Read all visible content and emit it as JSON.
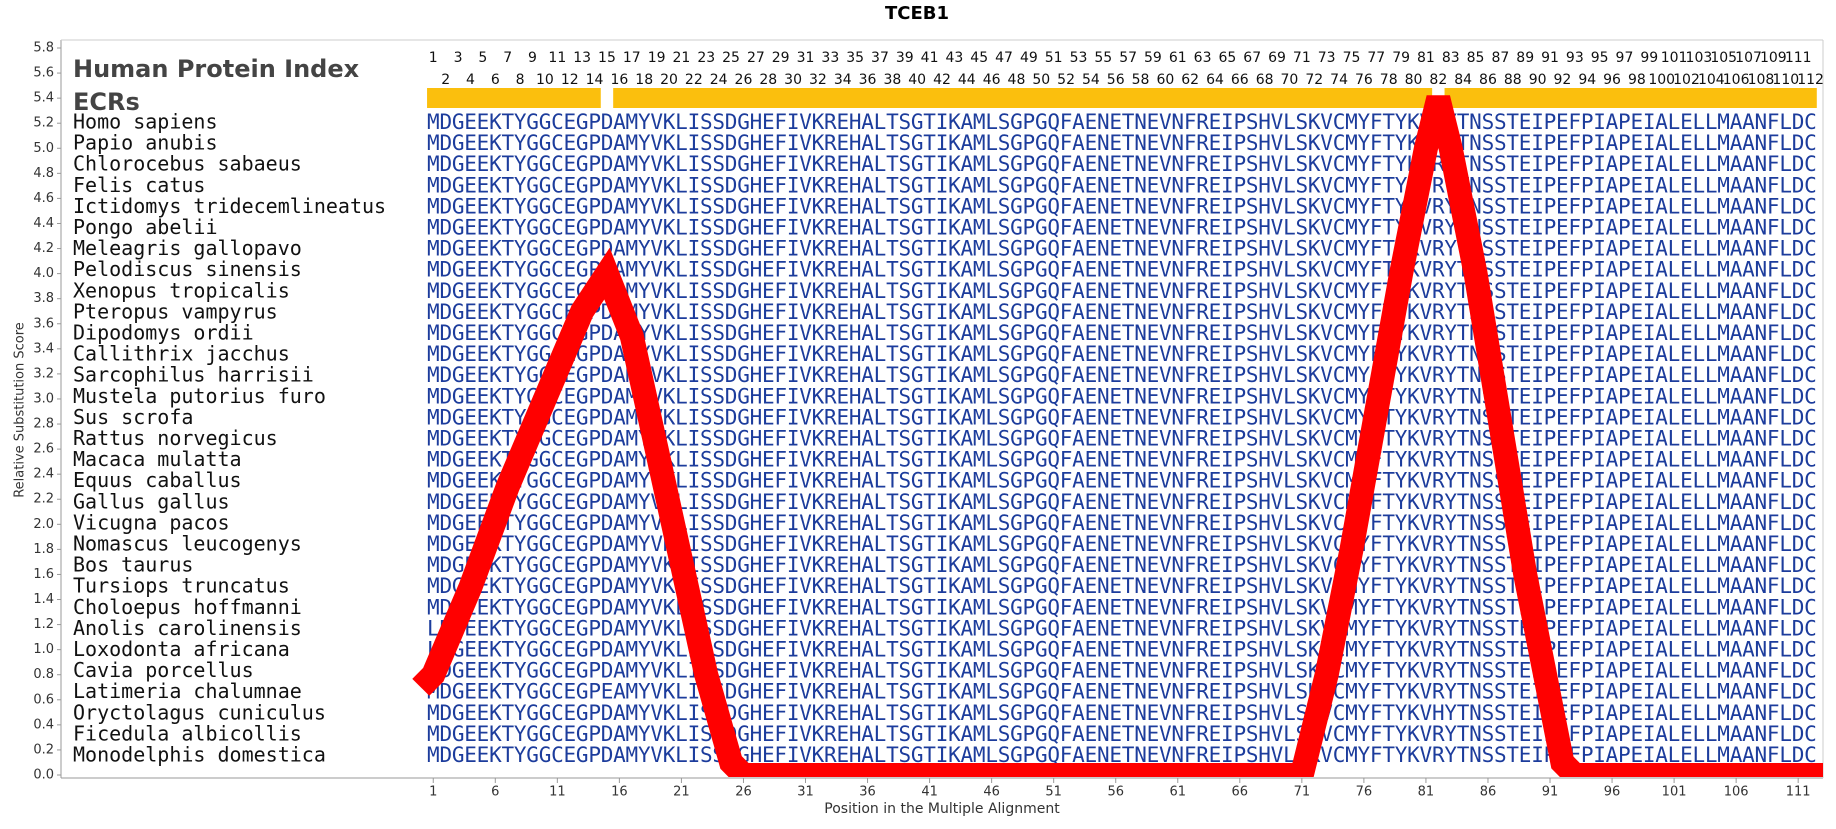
{
  "chart_data": {
    "type": "line",
    "title": "TCEB1",
    "xlabel": "Position in the Multiple Alignment",
    "ylabel": "Relative Substitution Score",
    "xlim": [
      -29,
      113
    ],
    "ylim": [
      0,
      5.8
    ],
    "xticks": [
      1,
      6,
      11,
      16,
      21,
      26,
      31,
      36,
      41,
      46,
      51,
      56,
      61,
      66,
      71,
      76,
      81,
      86,
      91,
      96,
      101,
      106,
      111
    ],
    "yticks": [
      {
        "value": 0,
        "label": "0.0"
      },
      0.2,
      0.4,
      0.6,
      0.8,
      {
        "value": 1,
        "label": "1.0"
      },
      1.2,
      1.4,
      1.6,
      1.8,
      {
        "value": 2,
        "label": "2.0"
      },
      2.2,
      2.4,
      2.6,
      2.8,
      {
        "value": 3,
        "label": "3.0"
      },
      3.2,
      3.4,
      3.6,
      3.8,
      {
        "value": 4,
        "label": "4.0"
      },
      4.2,
      4.4,
      4.6,
      4.8,
      {
        "value": 5,
        "label": "5.0"
      },
      5.2,
      5.4,
      5.6,
      5.8
    ],
    "color": "#ff0000",
    "x": [
      0,
      1,
      4,
      7,
      10,
      13,
      15,
      17,
      19,
      21,
      23,
      25,
      26,
      71,
      73,
      75,
      77,
      79,
      81,
      82,
      83,
      85,
      87,
      89,
      91,
      92,
      93,
      113
    ],
    "values": [
      0.7,
      0.8,
      1.5,
      2.3,
      3.0,
      3.7,
      4.0,
      3.5,
      2.6,
      1.7,
      0.8,
      0.1,
      0,
      0,
      0.8,
      1.8,
      2.9,
      4.0,
      5.0,
      5.4,
      5.0,
      4.0,
      2.8,
      1.6,
      0.6,
      0.1,
      0,
      0
    ],
    "protein_index_label": "Human Protein Index",
    "protein_index": [
      1,
      2,
      3,
      4,
      5,
      6,
      7,
      8,
      9,
      10,
      11,
      12,
      13,
      14,
      15,
      16,
      17,
      18,
      19,
      20,
      21,
      22,
      23,
      24,
      25,
      26,
      27,
      28,
      29,
      30,
      31,
      32,
      33,
      34,
      35,
      36,
      37,
      38,
      39,
      40,
      41,
      42,
      43,
      44,
      45,
      46,
      47,
      48,
      49,
      50,
      51,
      52,
      53,
      54,
      55,
      56,
      57,
      58,
      59,
      60,
      61,
      62,
      63,
      64,
      65,
      66,
      67,
      68,
      69,
      70,
      71,
      72,
      73,
      74,
      75,
      76,
      77,
      78,
      79,
      80,
      81,
      82,
      83,
      84,
      85,
      86,
      87,
      88,
      89,
      90,
      91,
      92,
      93,
      94,
      95,
      96,
      97,
      98,
      99,
      100,
      101,
      102,
      103,
      104,
      105,
      106,
      107,
      108,
      109,
      110,
      111,
      112
    ],
    "ecr_label": "ECRs",
    "ecr_color": "#fbbf0d",
    "ecrs": [
      [
        1,
        14
      ],
      [
        16,
        81
      ],
      [
        83,
        112
      ]
    ],
    "alignment": [
      {
        "species": "Homo sapiens",
        "sequence": "MDGEEKTYGGCEGPDAMYVKLISSDGHEFIVKREHALTSGTIKAMLSGPGQFAENETNEVNFREIPSHVLSKVCMYFTYKVRYTNSSTEIPEFPIAPEIALELLMAANFLDC"
      },
      {
        "species": "Papio anubis",
        "sequence": "MDGEEKTYGGCEGPDAMYVKLISSDGHEFIVKREHALTSGTIKAMLSGPGQFAENETNEVNFREIPSHVLSKVCMYFTYKVRYTNSSTEIPEFPIAPEIALELLMAANFLDC"
      },
      {
        "species": "Chlorocebus sabaeus",
        "sequence": "MDGEEKTYGGCEGPDAMYVKLISSDGHEFIVKREHALTSGTIKAMLSGPGQFAENETNEVNFREIPSHVLSKVCMYFTYKVRYTNSSTEIPEFPIAPEIALELLMAANFLDC"
      },
      {
        "species": "Felis catus",
        "sequence": "MDGEEKTYGGCEGPDAMYVKLISSDGHEFIVKREHALTSGTIKAMLSGPGQFAENETNEVNFREIPSHVLSKVCMYFTYKVRYTNSSTEIPEFPIAPEIALELLMAANFLDC"
      },
      {
        "species": "Ictidomys tridecemlineatus",
        "sequence": "MDGEEKTYGGCEGPDAMYVKLISSDGHEFIVKREHALTSGTIKAMLSGPGQFAENETNEVNFREIPSHVLSKVCMYFTYKVRYTNSSTEIPEFPIAPEIALELLMAANFLDC"
      },
      {
        "species": "Pongo abelii",
        "sequence": "MDGEEKTYGGCEGPDAMYVKLISSDGHEFIVKREHALTSGTIKAMLSGPGQFAENETNEVNFREIPSHVLSKVCMYFTYKVRYTNSSTEIPEFPIAPEIALELLMAANFLDC"
      },
      {
        "species": "Meleagris gallopavo",
        "sequence": "MDGEEKTYGGCEGPDAMYVKLISSDGHEFIVKREHALTSGTIKAMLSGPGQFAENETNEVNFREIPSHVLSKVCMYFTYKVRYTNSSTEIPEFPIAPEIALELLMAANFLDC"
      },
      {
        "species": "Pelodiscus sinensis",
        "sequence": "MDGEEKTYGGCEGPDAMYVKLISSDGHEFIVKREHALTSGTIKAMLSGPGQFAENETNEVNFREIPSHVLSKVCMYFTYKVRYTNSSTEIPEFPIAPEIALELLMAANFLDC"
      },
      {
        "species": "Xenopus tropicalis",
        "sequence": "MDGEEKTYGGCEGPDAMYVKLISSDGHEFIVKREHALTSGTIKAMLSGPGQFAENETNEVNFREIPSHVLSKVCMYFTYKVRYTNSSTEIPEFPIAPEIALELLMAANFLDC"
      },
      {
        "species": "Pteropus vampyrus",
        "sequence": "MDGEEKTYGGCEGPDAMYVKLISSDGHEFIVKREHALTSGTIKAMLSGPGQFAENETNEVNFREIPSHVLSKVCMYFTYKVRYTNSSTEIPEFPIAPEIALELLMAANFLDC"
      },
      {
        "species": "Dipodomys ordii",
        "sequence": "MDGEEKTYGGCEGPDAMYVKLISSDGHEFIVKREHALTSGTIKAMLSGPGQFAENETNEVNFREIPSHVLSKVCMYFTYKVRYTNSSTEIPEFPIAPEIALELLMAANFLDC"
      },
      {
        "species": "Callithrix jacchus",
        "sequence": "MDGEEKTYGGCEGPDAMYVKLISSDGHEFIVKREHALTSGTIKAMLSGPGQFAENETNEVNFREIPSHVLSKVCMYFTYKVRYTNSSTEIPEFPIAPEIALELLMAANFLDC"
      },
      {
        "species": "Sarcophilus harrisii",
        "sequence": "MDGEEKTYGGCEGPDAMYVKLISSDGHEFIVKREHALTSGTIKAMLSGPGQFAENETNEVNFREIPSHVLSKVCMYFTYKVRYTNSSTEIPEFPIAPEIALELLMAANFLDC"
      },
      {
        "species": "Mustela putorius furo",
        "sequence": "MDGEEKTYGGCEGPDAMYVKLISSDGHEFIVKREHALTSGTIKAMLSGPGQFAENETNEVNFREIPSHVLSKVCMYFTYKVRYTNSSTEIPEFPIAPEIALELLMAANFLDC"
      },
      {
        "species": "Sus scrofa",
        "sequence": "MDGEEKTYGGCEGPDAMYVKLISSDGHEFIVKREHALTSGTIKAMLSGPGQFAENETNEVNFREIPSHVLSKVCMYFTYKVRYTNSSTEIPEFPIAPEIALELLMAANFLDC"
      },
      {
        "species": "Rattus norvegicus",
        "sequence": "MDGEEKTYGGCEGPDAMYVKLISSDGHEFIVKREHALTSGTIKAMLSGPGQFAENETNEVNFREIPSHVLSKVCMYFTYKVRYTNSSTEIPEFPIAPEIALELLMAANFLDC"
      },
      {
        "species": "Macaca mulatta",
        "sequence": "MDGEEKTYGGCEGPDAMYVKLISSDGHEFIVKREHALTSGTIKAMLSGPGQFAENETNEVNFREIPSHVLSKVCMYFTYKVRYTNSSTEIPEFPIAPEIALELLMAANFLDC"
      },
      {
        "species": "Equus caballus",
        "sequence": "MDGEEKTYGGCEGPDAMYVKLISSDGHEFIVKREHALTSGTIKAMLSGPGQFAENETNEVNFREIPSHVLSKVCMYFTYKVRYTNSSTEIPEFPIAPEIALELLMAANFLDC"
      },
      {
        "species": "Gallus gallus",
        "sequence": "MDGEEKTYGGCEGPDAMYVKLISSDGHEFIVKREHALTSGTIKAMLSGPGQFAENETNEVNFREIPSHVLSKVCMYFTYKVRYTNSSTEIPEFPIAPEIALELLMAANFLDC"
      },
      {
        "species": "Vicugna pacos",
        "sequence": "MDGEEKTYGGCEGPDAMYVKLISSDGHEFIVKREHALTSGTIKAMLSGPGQFAENETNEVNFREIPSHVLSKVCMYFTYKVRYTNSSTEIPEFPIAPEIALELLMAANFLDC"
      },
      {
        "species": "Nomascus leucogenys",
        "sequence": "MDGEEKTYGGCEGPDAMYVKLISSDGHEFIVKREHALTSGTIKAMLSGPGQFAENETNEVNFREIPSHVLSKVCMYFTYKVRYTNSSTEIPEFPIAPEIALELLMAANFLDC"
      },
      {
        "species": "Bos taurus",
        "sequence": "MDGEEKTYGGCEGPDAMYVKLISSDGHEFIVKREHALTSGTIKAMLSGPGQFAENETNEVNFREIPSHVLSKVCMYFTYKVRYTNSSTEIPEFPIAPEIALELLMAANFLDC"
      },
      {
        "species": "Tursiops truncatus",
        "sequence": "MDGEEKTYGGCEGPDAMYVKLISSDGHEFIVKREHALTSGTIKAMLSGPGQFAENETNEVNFREIPSHVLSKVCMYFTYKVRYTNSSTEIPEFPIAPEIALELLMAANFLDC"
      },
      {
        "species": "Choloepus hoffmanni",
        "sequence": "MDGEEKTYGGCEGPDAMYVKLISSDGHEFIVKREHALTSGTIKAMLSGPGQFAENETNEVNFREIPSHVLSKVCMYFTYKVRYTNSSTEIPEFPIAPEIALELLMAANFLDC"
      },
      {
        "species": "Anolis carolinensis",
        "sequence": "LDGEEKTYGGCEGPDAMYVKLISSDGHEFIVKREHALTSGTIKAMLSGPGQFAENETNEVNFREIPSHVLSKVCMYFTYKVRYTNSSTEIPEFPIAPEIALELLMAANFLDC"
      },
      {
        "species": "Loxodonta africana",
        "sequence": "LDGEEKTYGGCEGPDAMYVKLISSDGHEFIVKREHALTSGTIKAMLSGPGQFAENETNEVNFREIPSHVLSKVCMYFTYKVRYTNSSTEIPEFPIAPEIALELLMAANFLDC"
      },
      {
        "species": "Cavia porcellus",
        "sequence": "LDGEEKTYGGCEGPDAMYVKLISSDGHEFIVKREHALTSGTIKAMLSGPGQFAENETNEVNFREIPSHVLSKVCMYFTYKVRYTNSSTEIPEFPIAPEIALELLMAANFLDC"
      },
      {
        "species": "Latimeria chalumnae",
        "sequence": "MDGEEKTYGGCEGPEAMYVKLISSDGHEFIVKREHALTSGTIKAMLSGPGQFAENETNEVNFREIPSHVLSKVCMYFTYKVRYTNSSTEIPEFPIAPEIALELLMAANFLDC"
      },
      {
        "species": "Oryctolagus cuniculus",
        "sequence": "MDGEEKTYGGCEGPDAMYVKLISSDGHEFIVKREHALTSGTIKAMLSGPGQFAENETNEVNFREIPSHVLSKVCMYFTYKVHYTNSSTEIPEFPIAPEIALELLMAANFLDC"
      },
      {
        "species": "Ficedula albicollis",
        "sequence": "MDGEEKTYGGCEGPDAMYVKLISSDGHEFIVKREHALTSGTIKAMLSGPGQFAENETNEVNFREIPSHVLSKVCMYFTYKVRYTNSSTEIPEFPIAPEIALELLMAANFLDC"
      },
      {
        "species": "Monodelphis domestica",
        "sequence": "MDGEEKTYGGCEGPDAMYVKLISSDGHEFIVKREHALTSGTIKAMLSGPGQFAENETNEVNFREIPSHVLSKVCMYFTYKVRYTNSSTEIPEFPIAPEIALELLMAANFLDC"
      }
    ]
  }
}
